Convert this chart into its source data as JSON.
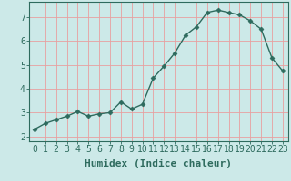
{
  "x": [
    0,
    1,
    2,
    3,
    4,
    5,
    6,
    7,
    8,
    9,
    10,
    11,
    12,
    13,
    14,
    15,
    16,
    17,
    18,
    19,
    20,
    21,
    22,
    23
  ],
  "y": [
    2.3,
    2.55,
    2.7,
    2.85,
    3.05,
    2.85,
    2.95,
    3.0,
    3.45,
    3.15,
    3.35,
    4.45,
    4.95,
    5.5,
    6.25,
    6.6,
    7.2,
    7.3,
    7.2,
    7.1,
    6.85,
    6.5,
    5.3,
    4.75
  ],
  "xlabel": "Humidex (Indice chaleur)",
  "xlim": [
    -0.5,
    23.5
  ],
  "ylim": [
    1.8,
    7.65
  ],
  "yticks": [
    2,
    3,
    4,
    5,
    6,
    7
  ],
  "xticks": [
    0,
    1,
    2,
    3,
    4,
    5,
    6,
    7,
    8,
    9,
    10,
    11,
    12,
    13,
    14,
    15,
    16,
    17,
    18,
    19,
    20,
    21,
    22,
    23
  ],
  "line_color": "#2e6b5e",
  "marker": "D",
  "marker_size": 2.5,
  "bg_color": "#cce9e8",
  "grid_color": "#e8a0a0",
  "xlabel_fontsize": 8,
  "tick_fontsize": 7,
  "xlabel_fontweight": "bold"
}
